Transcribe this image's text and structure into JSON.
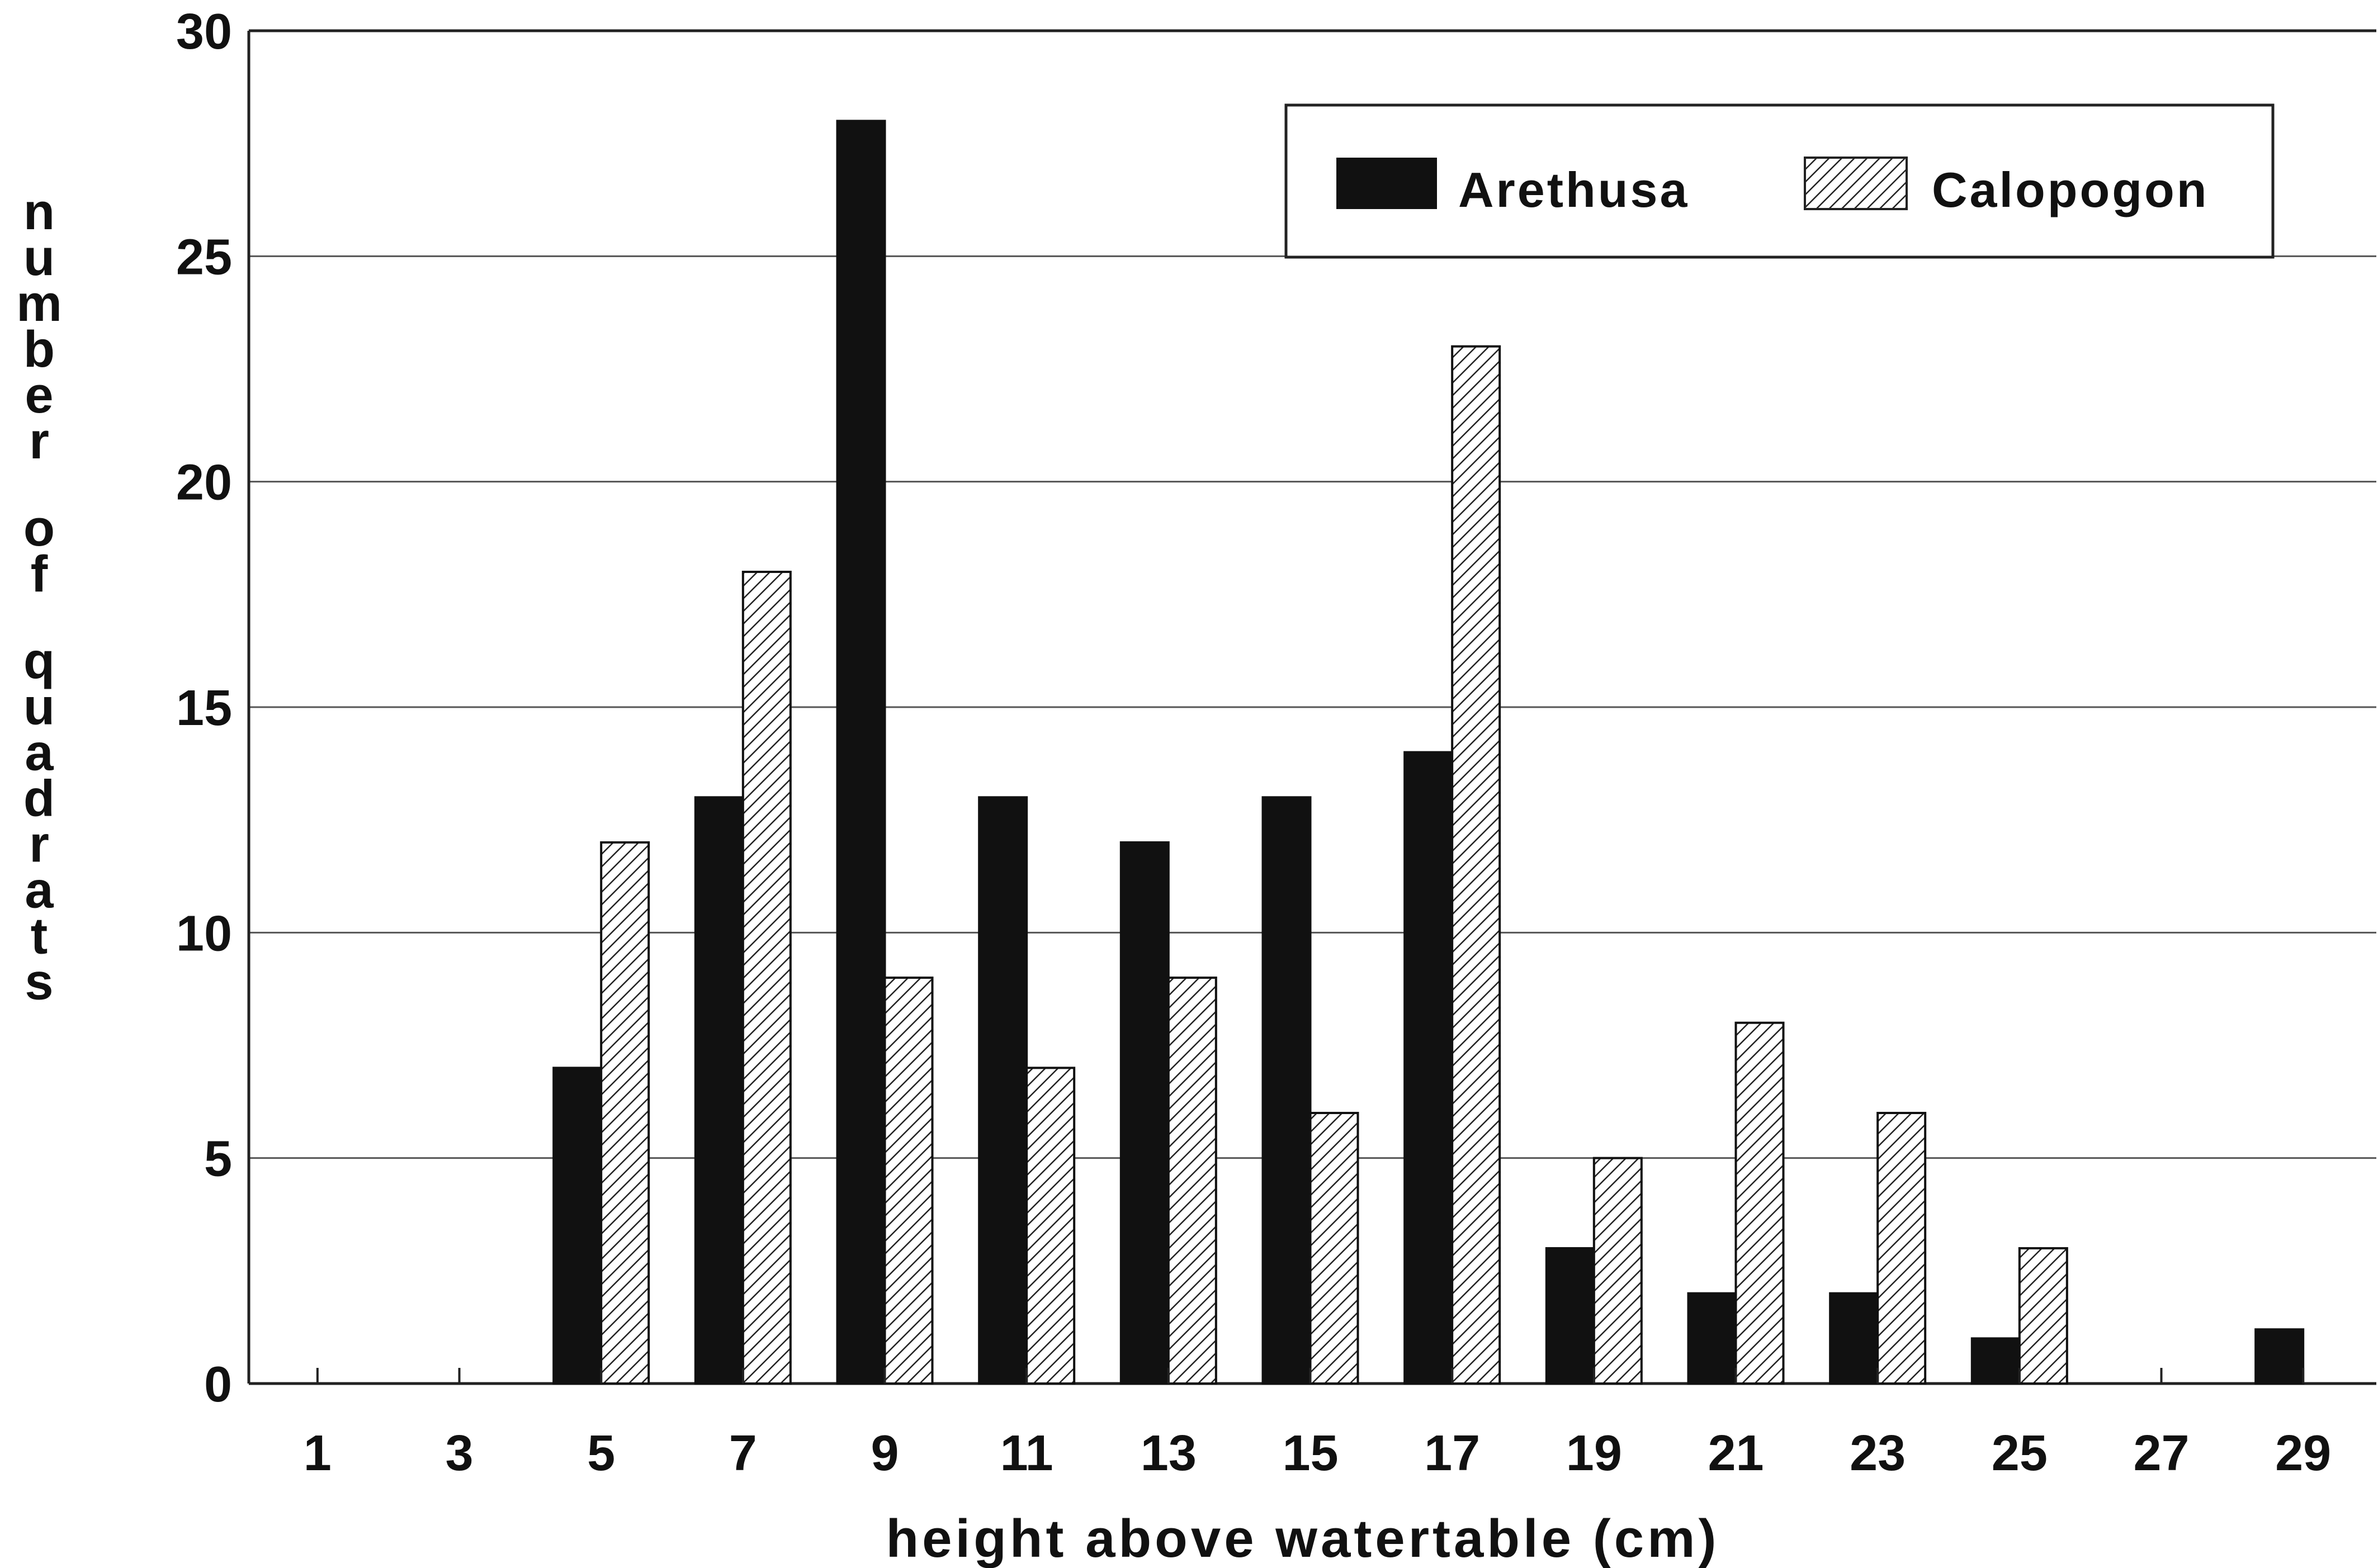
{
  "chart_data": {
    "type": "bar",
    "title": "",
    "xlabel": "height above watertable (cm)",
    "ylabel": "number of quadrats",
    "ylim": [
      0,
      30
    ],
    "yticks": [
      0,
      5,
      10,
      15,
      20,
      25,
      30
    ],
    "categories": [
      "1",
      "3",
      "5",
      "7",
      "9",
      "11",
      "13",
      "15",
      "17",
      "19",
      "21",
      "23",
      "25",
      "27",
      "29"
    ],
    "series": [
      {
        "name": "Arethusa",
        "values": [
          0,
          0,
          7,
          13,
          28,
          13,
          12,
          13,
          14,
          3,
          2,
          2,
          1,
          0,
          1.2
        ],
        "color": "#111111",
        "pattern": "solid"
      },
      {
        "name": "Calopogon",
        "values": [
          0,
          0,
          12,
          18,
          9,
          7,
          9,
          6,
          23,
          5,
          8,
          6,
          3,
          0,
          0
        ],
        "color": "#ffffff",
        "pattern": "diagonal-hatch"
      }
    ],
    "grid": true,
    "legend_position": "top-right"
  }
}
